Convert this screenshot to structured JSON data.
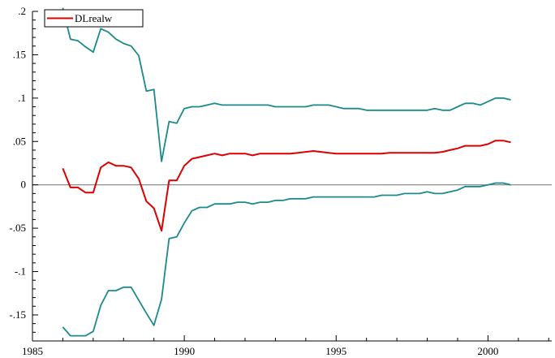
{
  "chart_data": {
    "type": "line",
    "title": "",
    "xlabel": "",
    "ylabel": "",
    "xlim": [
      1985,
      2002.1
    ],
    "ylim": [
      -0.18,
      0.2
    ],
    "grid": false,
    "legend_position": "top-left",
    "zero_line": 0,
    "x_ticks": [
      {
        "value": 1985,
        "label": "1985"
      },
      {
        "value": 1990,
        "label": "1990"
      },
      {
        "value": 1995,
        "label": "1995"
      },
      {
        "value": 2000,
        "label": "2000"
      }
    ],
    "y_ticks": [
      {
        "value": 0.2,
        "label": ".2"
      },
      {
        "value": 0.15,
        "label": ".15"
      },
      {
        "value": 0.1,
        "label": ".1"
      },
      {
        "value": 0.05,
        "label": ".05"
      },
      {
        "value": 0,
        "label": "0"
      },
      {
        "value": -0.05,
        "label": "-.05"
      },
      {
        "value": -0.1,
        "label": "-.1"
      },
      {
        "value": -0.15,
        "label": "-.15"
      }
    ],
    "series": [
      {
        "name": "DLrealw",
        "role": "estimate",
        "color": "#dd0000",
        "in_legend": true,
        "x": [
          1986.0,
          1986.25,
          1986.5,
          1986.75,
          1987.0,
          1987.25,
          1987.5,
          1987.75,
          1988.0,
          1988.25,
          1988.5,
          1988.75,
          1989.0,
          1989.25,
          1989.5,
          1989.75,
          1990.0,
          1990.25,
          1990.5,
          1990.75,
          1991.0,
          1991.25,
          1991.5,
          1991.75,
          1992.0,
          1992.25,
          1992.5,
          1992.75,
          1993.0,
          1993.25,
          1993.5,
          1993.75,
          1994.0,
          1994.25,
          1994.5,
          1994.75,
          1995.0,
          1995.25,
          1995.5,
          1995.75,
          1996.0,
          1996.25,
          1996.5,
          1996.75,
          1997.0,
          1997.25,
          1997.5,
          1997.75,
          1998.0,
          1998.25,
          1998.5,
          1998.75,
          1999.0,
          1999.25,
          1999.5,
          1999.75,
          2000.0,
          2000.25,
          2000.5,
          2000.75
        ],
        "y": [
          0.019,
          -0.003,
          -0.003,
          -0.009,
          -0.009,
          0.02,
          0.026,
          0.022,
          0.022,
          0.02,
          0.007,
          -0.019,
          -0.027,
          -0.053,
          0.005,
          0.005,
          0.022,
          0.03,
          0.032,
          0.034,
          0.036,
          0.034,
          0.036,
          0.036,
          0.036,
          0.034,
          0.036,
          0.036,
          0.036,
          0.036,
          0.036,
          0.037,
          0.038,
          0.039,
          0.038,
          0.037,
          0.036,
          0.036,
          0.036,
          0.036,
          0.036,
          0.036,
          0.036,
          0.037,
          0.037,
          0.037,
          0.037,
          0.037,
          0.037,
          0.037,
          0.038,
          0.04,
          0.042,
          0.045,
          0.045,
          0.045,
          0.047,
          0.051,
          0.051,
          0.049
        ]
      },
      {
        "role": "upper band",
        "color": "#1a8a8a",
        "in_legend": false,
        "x": [
          1986.0,
          1986.25,
          1986.5,
          1986.75,
          1987.0,
          1987.25,
          1987.5,
          1987.75,
          1988.0,
          1988.25,
          1988.5,
          1988.75,
          1989.0,
          1989.25,
          1989.5,
          1989.75,
          1990.0,
          1990.25,
          1990.5,
          1990.75,
          1991.0,
          1991.25,
          1991.5,
          1991.75,
          1992.0,
          1992.25,
          1992.5,
          1992.75,
          1993.0,
          1993.25,
          1993.5,
          1993.75,
          1994.0,
          1994.25,
          1994.5,
          1994.75,
          1995.0,
          1995.25,
          1995.5,
          1995.75,
          1996.0,
          1996.25,
          1996.5,
          1996.75,
          1997.0,
          1997.25,
          1997.5,
          1997.75,
          1998.0,
          1998.25,
          1998.5,
          1998.75,
          1999.0,
          1999.25,
          1999.5,
          1999.75,
          2000.0,
          2000.25,
          2000.5,
          2000.75
        ],
        "y": [
          0.204,
          0.168,
          0.166,
          0.159,
          0.153,
          0.18,
          0.176,
          0.168,
          0.163,
          0.16,
          0.149,
          0.108,
          0.11,
          0.027,
          0.073,
          0.071,
          0.088,
          0.09,
          0.09,
          0.092,
          0.094,
          0.092,
          0.092,
          0.092,
          0.092,
          0.092,
          0.092,
          0.092,
          0.09,
          0.09,
          0.09,
          0.09,
          0.09,
          0.092,
          0.092,
          0.092,
          0.09,
          0.088,
          0.088,
          0.088,
          0.086,
          0.086,
          0.086,
          0.086,
          0.086,
          0.086,
          0.086,
          0.086,
          0.086,
          0.088,
          0.086,
          0.086,
          0.09,
          0.094,
          0.094,
          0.092,
          0.096,
          0.1,
          0.1,
          0.098
        ]
      },
      {
        "role": "lower band",
        "color": "#1a8a8a",
        "in_legend": false,
        "x": [
          1986.0,
          1986.25,
          1986.5,
          1986.75,
          1987.0,
          1987.25,
          1987.5,
          1987.75,
          1988.0,
          1988.25,
          1988.5,
          1988.75,
          1989.0,
          1989.25,
          1989.5,
          1989.75,
          1990.0,
          1990.25,
          1990.5,
          1990.75,
          1991.0,
          1991.25,
          1991.5,
          1991.75,
          1992.0,
          1992.25,
          1992.5,
          1992.75,
          1993.0,
          1993.25,
          1993.5,
          1993.75,
          1994.0,
          1994.25,
          1994.5,
          1994.75,
          1995.0,
          1995.25,
          1995.5,
          1995.75,
          1996.0,
          1996.25,
          1996.5,
          1996.75,
          1997.0,
          1997.25,
          1997.5,
          1997.75,
          1998.0,
          1998.25,
          1998.5,
          1998.75,
          1999.0,
          1999.25,
          1999.5,
          1999.75,
          2000.0,
          2000.25,
          2000.5,
          2000.75
        ],
        "y": [
          -0.164,
          -0.174,
          -0.174,
          -0.174,
          -0.169,
          -0.139,
          -0.122,
          -0.122,
          -0.118,
          -0.118,
          -0.133,
          -0.148,
          -0.162,
          -0.132,
          -0.062,
          -0.06,
          -0.044,
          -0.03,
          -0.026,
          -0.026,
          -0.022,
          -0.022,
          -0.022,
          -0.02,
          -0.02,
          -0.022,
          -0.02,
          -0.02,
          -0.018,
          -0.018,
          -0.016,
          -0.016,
          -0.016,
          -0.014,
          -0.014,
          -0.014,
          -0.014,
          -0.014,
          -0.014,
          -0.014,
          -0.014,
          -0.014,
          -0.012,
          -0.012,
          -0.012,
          -0.01,
          -0.01,
          -0.01,
          -0.008,
          -0.01,
          -0.01,
          -0.008,
          -0.006,
          -0.002,
          -0.002,
          -0.002,
          0.0,
          0.002,
          0.002,
          0.0
        ]
      }
    ]
  }
}
